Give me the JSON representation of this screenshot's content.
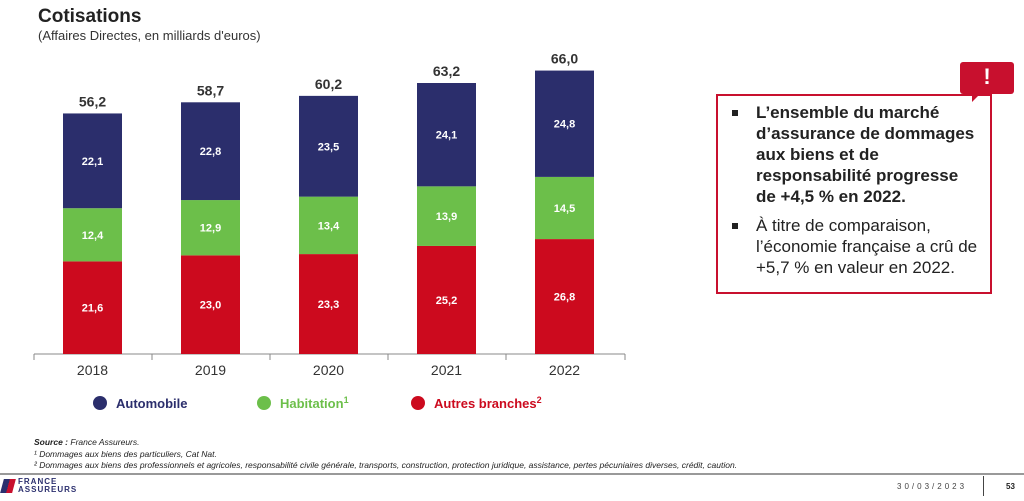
{
  "chart_data": {
    "type": "bar",
    "stacked": true,
    "title": "Cotisations",
    "subtitle": "(Affaires Directes, en milliards d'euros)",
    "categories": [
      "2018",
      "2019",
      "2020",
      "2021",
      "2022"
    ],
    "series": [
      {
        "name": "Autres branches",
        "sup": "2",
        "color": "#cc0a1e",
        "values": [
          21.6,
          23.0,
          23.3,
          25.2,
          26.8
        ],
        "labels": [
          "21,6",
          "23,0",
          "23,3",
          "25,2",
          "26,8"
        ]
      },
      {
        "name": "Habitation",
        "sup": "1",
        "color": "#6cbf4a",
        "values": [
          12.4,
          12.9,
          13.4,
          13.9,
          14.5
        ],
        "labels": [
          "12,4",
          "12,9",
          "13,4",
          "13,9",
          "14,5"
        ]
      },
      {
        "name": "Automobile",
        "sup": "",
        "color": "#2b2e6c",
        "values": [
          22.1,
          22.8,
          23.5,
          24.1,
          24.8
        ],
        "labels": [
          "22,1",
          "22,8",
          "23,5",
          "24,1",
          "24,8"
        ]
      }
    ],
    "totals": [
      56.2,
      58.7,
      60.2,
      63.2,
      66.0
    ],
    "total_labels": [
      "56,2",
      "58,7",
      "60,2",
      "63,2",
      "66,0"
    ],
    "ylim": [
      0,
      66
    ],
    "grid": false,
    "legend": "bottom",
    "legend_order": [
      "Automobile",
      "Habitation",
      "Autres branches"
    ]
  },
  "callout": {
    "icon": "exclamation-icon",
    "alert_symbol": "!",
    "points": [
      "L’ensemble du marché d’assurance de dommages aux biens et de responsabilité progresse de +4,5 % en 2022.",
      "À titre de comparaison, l’économie française a crû de +5,7 % en valeur en 2022."
    ]
  },
  "footnotes": {
    "source_label": "Source :",
    "source": " France Assureurs.",
    "note1": "¹ Dommages aux biens des particuliers, Cat Nat.",
    "note2": "² Dommages aux biens des professionnels et agricoles, responsabilité civile générale, transports, construction, protection juridique, assistance, pertes pécuniaires diverses, crédit, caution."
  },
  "footer": {
    "logo_line1": "FRANCE",
    "logo_line2": "ASSUREURS",
    "date": "30/03/2023",
    "page": "53"
  }
}
